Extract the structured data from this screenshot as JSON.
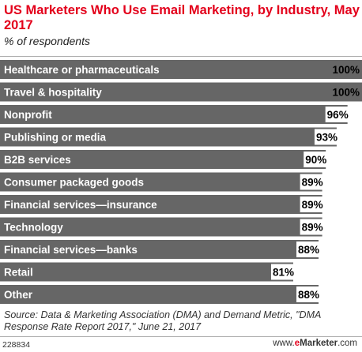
{
  "chart_data": {
    "type": "bar",
    "orientation": "horizontal",
    "title": "US Marketers Who Use Email Marketing, by Industry, May 2017",
    "subtitle": "% of respondents",
    "categories": [
      "Healthcare or pharmaceuticals",
      "Travel & hospitality",
      "Nonprofit",
      "Publishing or media",
      "B2B services",
      "Consumer packaged goods",
      "Financial services—insurance",
      "Technology",
      "Financial services—banks",
      "Retail",
      "Other"
    ],
    "values": [
      100,
      100,
      96,
      93,
      90,
      89,
      89,
      89,
      88,
      81,
      88
    ],
    "value_labels": [
      "100%",
      "100%",
      "96%",
      "93%",
      "90%",
      "89%",
      "89%",
      "89%",
      "88%",
      "81%",
      "88%"
    ],
    "xlim": [
      0,
      100
    ],
    "bar_color": "#666666",
    "grid": false,
    "legend": "none"
  },
  "source": "Source: Data & Marketing Association (DMA) and Demand Metric, \"DMA Response Rate Report 2017,\" June 21, 2017",
  "footer": {
    "chart_id": "228834",
    "brand_prefix": "www.",
    "brand_e": "e",
    "brand_name": "Marketer",
    "brand_suffix": ".com"
  },
  "colors": {
    "title": "#e3001b",
    "bar": "#666666",
    "brand_e": "#e3001b"
  }
}
